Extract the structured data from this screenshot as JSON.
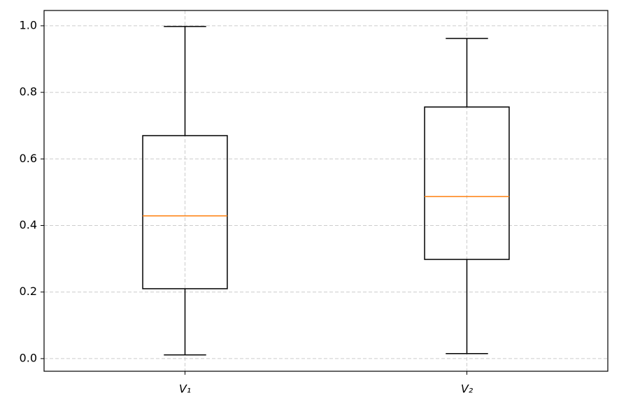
{
  "chart_data": {
    "type": "box",
    "categories": [
      "V₁",
      "V₂"
    ],
    "boxes": [
      {
        "whislo": 0.011,
        "q1": 0.21,
        "med": 0.429,
        "q3": 0.67,
        "whishi": 0.998
      },
      {
        "whislo": 0.015,
        "q1": 0.298,
        "med": 0.487,
        "q3": 0.756,
        "whishi": 0.962
      }
    ],
    "box_color": "#000000",
    "median_color": "#ff7f0e",
    "ylim": [
      -0.038,
      1.046
    ],
    "yticks": [
      {
        "value": 0,
        "label": "0.0"
      },
      0.2,
      0.4,
      0.6,
      0.8,
      {
        "value": 1,
        "label": "1.0"
      }
    ],
    "grid": true
  }
}
